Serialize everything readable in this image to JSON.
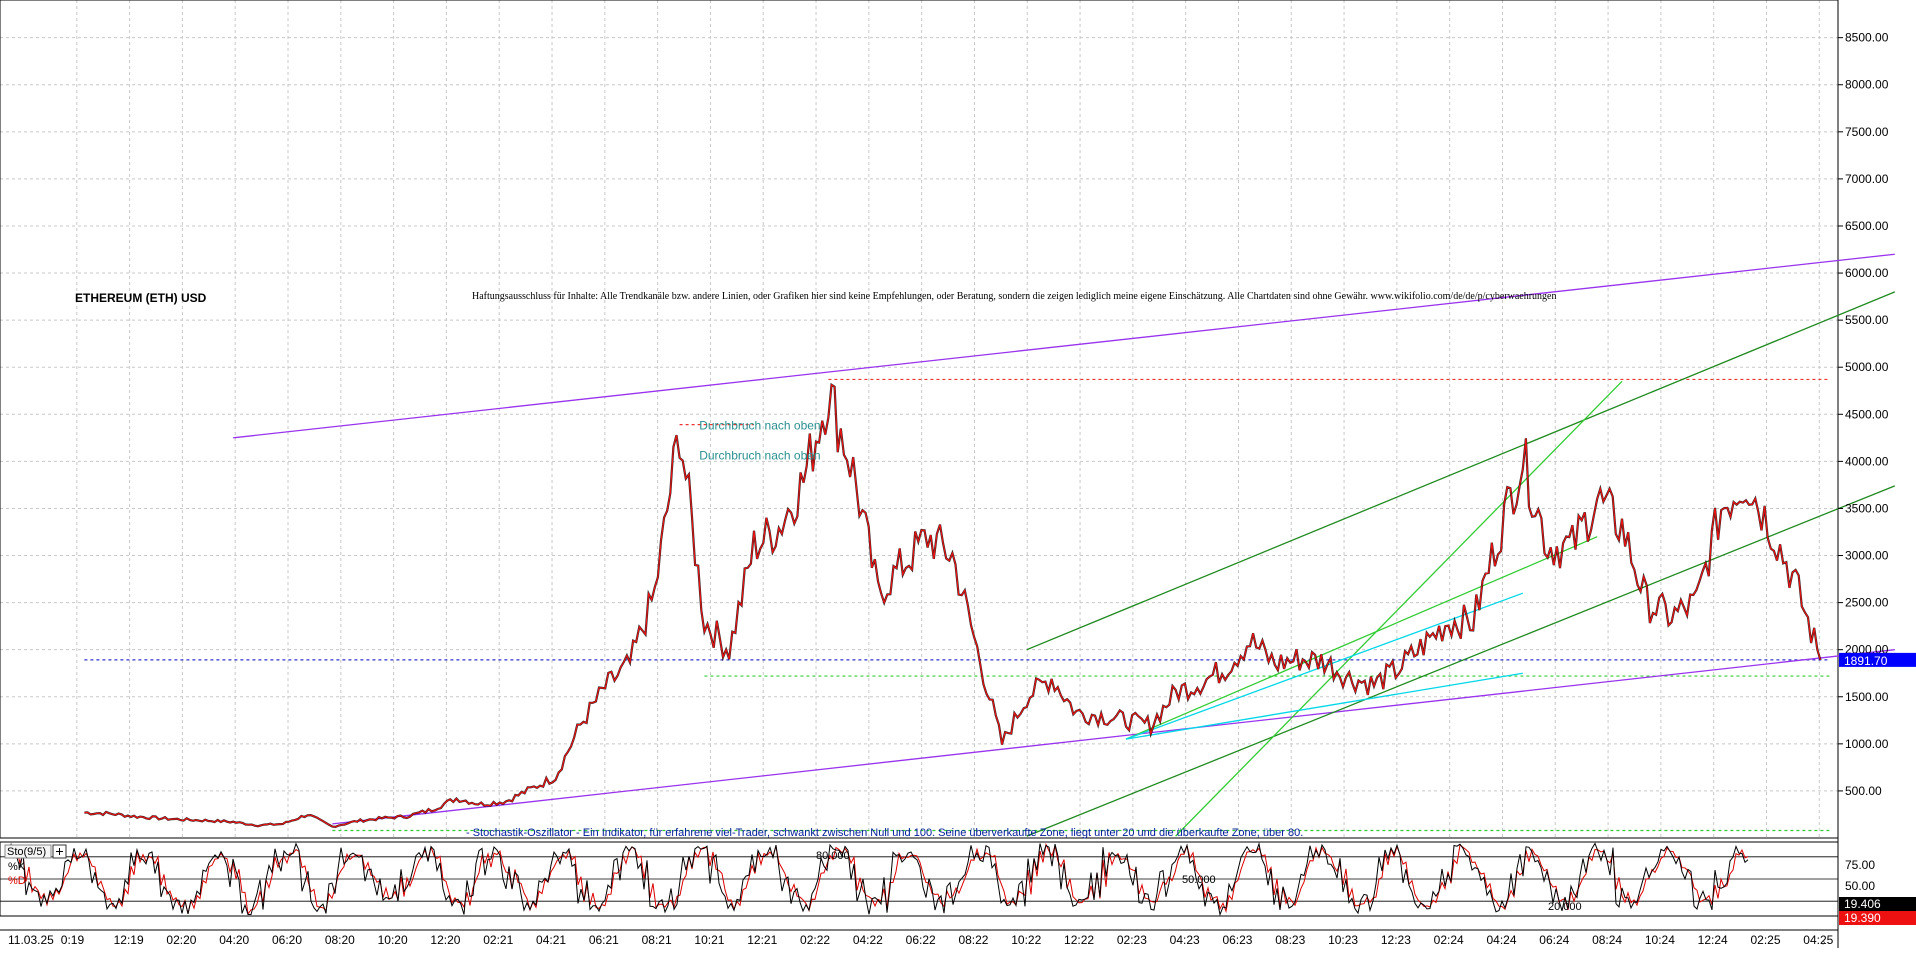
{
  "chart_data": {
    "type": "line",
    "title": "ETHEREUM (ETH) USD",
    "disclaimer": "Haftungsausschluss für Inhalte: Alle Trendkanäle bzw. andere Linien, oder Grafiken hier sind keine Empfehlungen, oder Beratung, sondern die zeigen lediglich meine eigene Einschätzung. Alle Chartdaten sind ohne Gewähr.  www.wikifolio.com/de/de/p/cyberwaehrungen",
    "price_axis": {
      "ticks": [
        "500.00",
        "1000.00",
        "1500.00",
        "2000.00",
        "2500.00",
        "3000.00",
        "3500.00",
        "4000.00",
        "4500.00",
        "5000.00",
        "5500.00",
        "6000.00",
        "6500.00",
        "7000.00",
        "7500.00",
        "8000.00",
        "8500.00"
      ],
      "ylim": [
        0,
        8900
      ]
    },
    "date_axis": {
      "ticks": [
        "11.03.25",
        "0:19",
        "12:19",
        "02:20",
        "04:20",
        "06:20",
        "08:20",
        "10:20",
        "12:20",
        "02:21",
        "04:21",
        "06:21",
        "08:21",
        "10:21",
        "12:21",
        "02:22",
        "04:22",
        "06:22",
        "08:22",
        "10:22",
        "12:22",
        "02:23",
        "04:23",
        "06:23",
        "08:23",
        "10:23",
        "12:23",
        "02:24",
        "04:24",
        "06:24",
        "08:24",
        "10:24",
        "12:24",
        "02:25",
        "04:25"
      ]
    },
    "last_price": {
      "label": "1891.70",
      "value": 1891.7,
      "color": "#0000ff"
    },
    "series": [
      {
        "name": "",
        "color": "#ee1111",
        "points": [
          [
            "2019-05",
            270
          ],
          [
            "2019-06",
            260
          ],
          [
            "2019-07",
            230
          ],
          [
            "2019-08",
            210
          ],
          [
            "2019-09",
            195
          ],
          [
            "2019-10",
            185
          ],
          [
            "2019-11",
            170
          ],
          [
            "2019-12",
            135
          ],
          [
            "2020-01",
            150
          ],
          [
            "2020-02",
            250
          ],
          [
            "2020-03",
            120
          ],
          [
            "2020-04",
            180
          ],
          [
            "2020-05",
            210
          ],
          [
            "2020-06",
            230
          ],
          [
            "2020-07",
            300
          ],
          [
            "2020-08",
            420
          ],
          [
            "2020-09",
            360
          ],
          [
            "2020-10",
            390
          ],
          [
            "2020-11",
            520
          ],
          [
            "2020-12",
            650
          ],
          [
            "2021-01",
            1200
          ],
          [
            "2021-02",
            1600
          ],
          [
            "2021-03",
            1850
          ],
          [
            "2021-04",
            2600
          ],
          [
            "2021-05",
            4350
          ],
          [
            "2021-06",
            2300
          ],
          [
            "2021-07",
            2000
          ],
          [
            "2021-08",
            3100
          ],
          [
            "2021-09",
            3300
          ],
          [
            "2021-10",
            3800
          ],
          [
            "2021-11",
            4750
          ],
          [
            "2021-12",
            3900
          ],
          [
            "2022-01",
            2600
          ],
          [
            "2022-02",
            2900
          ],
          [
            "2022-03",
            3200
          ],
          [
            "2022-04",
            3000
          ],
          [
            "2022-05",
            2000
          ],
          [
            "2022-06",
            1000
          ],
          [
            "2022-07",
            1500
          ],
          [
            "2022-08",
            1700
          ],
          [
            "2022-09",
            1330
          ],
          [
            "2022-10",
            1300
          ],
          [
            "2022-11",
            1250
          ],
          [
            "2022-12",
            1200
          ],
          [
            "2023-01",
            1550
          ],
          [
            "2023-02",
            1650
          ],
          [
            "2023-03",
            1800
          ],
          [
            "2023-04",
            2100
          ],
          [
            "2023-05",
            1850
          ],
          [
            "2023-06",
            1900
          ],
          [
            "2023-07",
            1880
          ],
          [
            "2023-08",
            1700
          ],
          [
            "2023-09",
            1630
          ],
          [
            "2023-10",
            1800
          ],
          [
            "2023-11",
            2050
          ],
          [
            "2023-12",
            2300
          ],
          [
            "2024-01",
            2300
          ],
          [
            "2024-02",
            3200
          ],
          [
            "2024-03",
            4050
          ],
          [
            "2024-04",
            3100
          ],
          [
            "2024-05",
            3100
          ],
          [
            "2024-06",
            3600
          ],
          [
            "2024-07",
            3300
          ],
          [
            "2024-08",
            2500
          ],
          [
            "2024-09",
            2350
          ],
          [
            "2024-10",
            2500
          ],
          [
            "2024-11",
            3500
          ],
          [
            "2024-12",
            3800
          ],
          [
            "2025-01",
            3300
          ],
          [
            "2025-02",
            2700
          ],
          [
            "2025-03",
            1891.7
          ]
        ]
      }
    ],
    "trend_lines": [
      {
        "color": "#9933ee",
        "from": [
          "2020-03",
          150
        ],
        "to": [
          "2025-06",
          2000
        ]
      },
      {
        "color": "#9933ee",
        "from": [
          "2019-11",
          4250
        ],
        "to": [
          "2025-06",
          6200
        ]
      },
      {
        "color": "#1f8a1f",
        "from": [
          "2022-07",
          2000
        ],
        "to": [
          "2025-06",
          5800
        ]
      },
      {
        "color": "#1f8a1f",
        "from": [
          "2022-07",
          20
        ],
        "to": [
          "2025-06",
          3740
        ]
      },
      {
        "color": "#33cc33",
        "from": [
          "2023-01",
          20
        ],
        "to": [
          "2024-07",
          4850
        ]
      },
      {
        "color": "#33cc33",
        "from": [
          "2022-11",
          1050
        ],
        "to": [
          "2024-06",
          3200
        ]
      },
      {
        "color": "#00d7e8",
        "from": [
          "2022-11",
          1050
        ],
        "to": [
          "2024-03",
          2600
        ]
      },
      {
        "color": "#00d7e8",
        "from": [
          "2022-11",
          1050
        ],
        "to": [
          "2024-03",
          1750
        ]
      }
    ],
    "levels": [
      {
        "value": 4870,
        "from": "2021-11",
        "color": "#ee3333",
        "style": "dotted"
      },
      {
        "value": 4390,
        "from": "2021-05",
        "to": "2021-08",
        "color": "#ee3333",
        "style": "dotted"
      },
      {
        "value": 1891.7,
        "from": "2019-05",
        "color": "#3333cc",
        "style": "dotted"
      },
      {
        "value": 1720,
        "from": "2021-06",
        "color": "#33cc33",
        "style": "dotted"
      },
      {
        "value": 80,
        "from": "2020-03",
        "color": "#33cc33",
        "style": "dotted"
      }
    ],
    "annotations": [
      {
        "text": "Durchbruch nach oben",
        "at": [
          "2021-07",
          4340
        ]
      },
      {
        "text": "Durchbruch nach oben",
        "at": [
          "2021-07",
          4020
        ]
      }
    ],
    "stochastic": {
      "label": "Sto(9/5)",
      "k_label": "%K",
      "d_label": "%D",
      "k_color": "#000000",
      "d_color": "#dd0000",
      "ticks": [
        "75.00",
        "50.00"
      ],
      "level_labels": [
        "80.000",
        "50.000",
        "20.000"
      ],
      "values": {
        "k": "19.406",
        "d": "19.390"
      },
      "note": "- Stochastik-Oszillator - Ein Indikator, für erfahrene viel-Trader, schwankt zwischen Null und 100. Seine überverkaufte Zone, liegt unter 20 und die überkaufte Zone, über 80."
    }
  }
}
